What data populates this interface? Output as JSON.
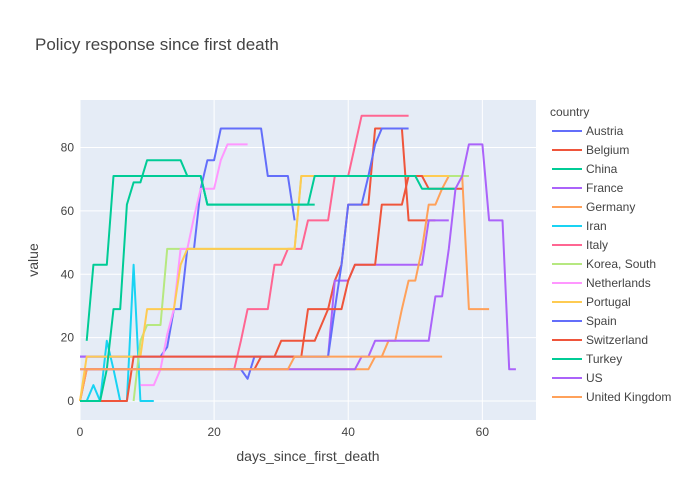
{
  "chart_data": {
    "type": "line",
    "title": "Policy response since first death",
    "xlabel": "days_since_first_death",
    "ylabel": "value",
    "xlim": [
      0,
      68
    ],
    "ylim": [
      -6,
      95
    ],
    "x_ticks": [
      0,
      20,
      40,
      60
    ],
    "y_ticks": [
      0,
      20,
      40,
      60,
      80
    ],
    "legend_title": "country",
    "legend_position": "right",
    "series": [
      {
        "name": "Austria",
        "color": "#636efa",
        "points": [
          [
            0,
            14
          ],
          [
            12,
            14
          ],
          [
            13,
            17
          ],
          [
            14,
            29
          ],
          [
            15,
            29
          ],
          [
            16,
            48
          ],
          [
            17,
            48
          ],
          [
            18,
            67
          ],
          [
            19,
            76
          ],
          [
            20,
            76
          ],
          [
            21,
            86
          ],
          [
            27,
            86
          ],
          [
            28,
            71
          ],
          [
            31,
            71
          ],
          [
            32,
            57
          ]
        ]
      },
      {
        "name": "Belgium",
        "color": "#EF553B",
        "points": [
          [
            0,
            0
          ],
          [
            1,
            10
          ],
          [
            26,
            10
          ],
          [
            27,
            14
          ],
          [
            29,
            14
          ],
          [
            30,
            19
          ],
          [
            35,
            19
          ],
          [
            36,
            24
          ],
          [
            37,
            29
          ],
          [
            38,
            38
          ],
          [
            39,
            43
          ],
          [
            40,
            62
          ],
          [
            41,
            62
          ],
          [
            42,
            62
          ],
          [
            43,
            62
          ],
          [
            44,
            86
          ],
          [
            48,
            86
          ],
          [
            49,
            57
          ],
          [
            53,
            57
          ]
        ]
      },
      {
        "name": "China",
        "color": "#00cc96",
        "points": [
          [
            1,
            19
          ],
          [
            2,
            43
          ],
          [
            4,
            43
          ],
          [
            5,
            71
          ],
          [
            18,
            71
          ],
          [
            19,
            62
          ],
          [
            35,
            62
          ]
        ]
      },
      {
        "name": "France",
        "color": "#ab63fa",
        "points": [
          [
            0,
            14
          ],
          [
            1,
            14
          ],
          [
            28,
            14
          ],
          [
            29,
            14
          ],
          [
            37,
            14
          ],
          [
            38,
            38
          ],
          [
            40,
            38
          ],
          [
            41,
            43
          ],
          [
            51,
            43
          ],
          [
            52,
            57
          ],
          [
            55,
            57
          ]
        ]
      },
      {
        "name": "Germany",
        "color": "#FFA15A",
        "points": [
          [
            0,
            0
          ],
          [
            1,
            10
          ],
          [
            43,
            10
          ],
          [
            44,
            14
          ],
          [
            45,
            14
          ],
          [
            46,
            19
          ],
          [
            47,
            19
          ],
          [
            48,
            29
          ],
          [
            49,
            38
          ],
          [
            50,
            38
          ],
          [
            51,
            48
          ],
          [
            52,
            62
          ],
          [
            53,
            62
          ],
          [
            54,
            67
          ],
          [
            55,
            71
          ],
          [
            56,
            71
          ],
          [
            57,
            71
          ],
          [
            58,
            29
          ],
          [
            61,
            29
          ]
        ]
      },
      {
        "name": "Iran",
        "color": "#19d3f3",
        "points": [
          [
            0,
            0
          ],
          [
            1,
            0
          ],
          [
            2,
            5
          ],
          [
            3,
            0
          ],
          [
            4,
            19
          ],
          [
            5,
            10
          ],
          [
            6,
            0
          ],
          [
            7,
            0
          ],
          [
            8,
            43
          ],
          [
            9,
            0
          ],
          [
            10,
            0
          ],
          [
            11,
            0
          ]
        ]
      },
      {
        "name": "Italy",
        "color": "#FF6692",
        "points": [
          [
            23,
            10
          ],
          [
            24,
            19
          ],
          [
            25,
            29
          ],
          [
            28,
            29
          ],
          [
            29,
            43
          ],
          [
            30,
            43
          ],
          [
            31,
            48
          ],
          [
            33,
            48
          ],
          [
            34,
            57
          ],
          [
            37,
            57
          ],
          [
            38,
            71
          ],
          [
            40,
            71
          ],
          [
            42,
            90
          ],
          [
            49,
            90
          ]
        ]
      },
      {
        "name": "Korea, South",
        "color": "#B6E880",
        "points": [
          [
            8,
            0
          ],
          [
            9,
            19
          ],
          [
            10,
            24
          ],
          [
            12,
            24
          ],
          [
            13,
            48
          ],
          [
            32,
            48
          ],
          [
            33,
            71
          ],
          [
            58,
            71
          ]
        ]
      },
      {
        "name": "Netherlands",
        "color": "#FF97FF",
        "points": [
          [
            9,
            5
          ],
          [
            11,
            5
          ],
          [
            12,
            10
          ],
          [
            13,
            21
          ],
          [
            14,
            29
          ],
          [
            15,
            48
          ],
          [
            16,
            48
          ],
          [
            17,
            58
          ],
          [
            18,
            67
          ],
          [
            19,
            67
          ],
          [
            20,
            67
          ],
          [
            21,
            76
          ],
          [
            22,
            81
          ],
          [
            25,
            81
          ]
        ]
      },
      {
        "name": "Portugal",
        "color": "#FECB52",
        "points": [
          [
            0,
            0
          ],
          [
            1,
            14
          ],
          [
            9,
            14
          ],
          [
            10,
            29
          ],
          [
            14,
            29
          ],
          [
            15,
            43
          ],
          [
            16,
            48
          ],
          [
            31,
            48
          ],
          [
            32,
            48
          ],
          [
            33,
            71
          ],
          [
            55,
            71
          ]
        ]
      },
      {
        "name": "Spain",
        "color": "#636efa",
        "points": [
          [
            22,
            10
          ],
          [
            24,
            10
          ],
          [
            25,
            7
          ],
          [
            26,
            14
          ],
          [
            27,
            14
          ],
          [
            28,
            14
          ],
          [
            37,
            14
          ],
          [
            38,
            29
          ],
          [
            39,
            43
          ],
          [
            40,
            62
          ],
          [
            42,
            62
          ],
          [
            43,
            71
          ],
          [
            44,
            81
          ],
          [
            45,
            86
          ],
          [
            49,
            86
          ]
        ]
      },
      {
        "name": "Switzerland",
        "color": "#EF553B",
        "points": [
          [
            0,
            0
          ],
          [
            1,
            0
          ],
          [
            2,
            0
          ],
          [
            3,
            0
          ],
          [
            4,
            0
          ],
          [
            5,
            0
          ],
          [
            6,
            0
          ],
          [
            7,
            0
          ],
          [
            8,
            14
          ],
          [
            29,
            14
          ],
          [
            30,
            14
          ],
          [
            33,
            14
          ],
          [
            34,
            29
          ],
          [
            39,
            29
          ],
          [
            40,
            38
          ],
          [
            41,
            43
          ],
          [
            44,
            43
          ],
          [
            45,
            62
          ],
          [
            47,
            62
          ],
          [
            48,
            62
          ],
          [
            49,
            71
          ],
          [
            51,
            71
          ],
          [
            52,
            67
          ],
          [
            57,
            67
          ]
        ]
      },
      {
        "name": "Turkey",
        "color": "#00cc96",
        "points": [
          [
            0,
            0
          ],
          [
            1,
            0
          ],
          [
            2,
            0
          ],
          [
            3,
            0
          ],
          [
            4,
            10
          ],
          [
            5,
            29
          ],
          [
            6,
            29
          ],
          [
            7,
            62
          ],
          [
            8,
            69
          ],
          [
            9,
            69
          ],
          [
            10,
            76
          ],
          [
            15,
            76
          ],
          [
            16,
            71
          ],
          [
            17,
            71
          ],
          [
            18,
            71
          ],
          [
            19,
            62
          ],
          [
            34,
            62
          ],
          [
            35,
            71
          ],
          [
            50,
            71
          ],
          [
            51,
            67
          ],
          [
            56,
            67
          ]
        ]
      },
      {
        "name": "US",
        "color": "#ab63fa",
        "points": [
          [
            0,
            10
          ],
          [
            41,
            10
          ],
          [
            42,
            14
          ],
          [
            43,
            14
          ],
          [
            44,
            19
          ],
          [
            52,
            19
          ],
          [
            53,
            33
          ],
          [
            54,
            33
          ],
          [
            55,
            48
          ],
          [
            56,
            67
          ],
          [
            57,
            71
          ],
          [
            58,
            81
          ],
          [
            59,
            81
          ],
          [
            60,
            81
          ],
          [
            61,
            57
          ],
          [
            62,
            57
          ],
          [
            63,
            57
          ],
          [
            64,
            10
          ],
          [
            65,
            10
          ]
        ]
      },
      {
        "name": "United Kingdom",
        "color": "#FFA15A",
        "points": [
          [
            0,
            10
          ],
          [
            1,
            10
          ],
          [
            30,
            10
          ],
          [
            31,
            10
          ],
          [
            32,
            14
          ],
          [
            33,
            14
          ],
          [
            34,
            14
          ],
          [
            35,
            14
          ],
          [
            36,
            14
          ],
          [
            37,
            14
          ],
          [
            38,
            14
          ],
          [
            39,
            14
          ],
          [
            40,
            14
          ],
          [
            41,
            14
          ],
          [
            42,
            14
          ],
          [
            43,
            14
          ],
          [
            44,
            14
          ],
          [
            45,
            14
          ],
          [
            46,
            14
          ],
          [
            47,
            14
          ],
          [
            48,
            14
          ],
          [
            49,
            14
          ],
          [
            50,
            14
          ],
          [
            51,
            14
          ],
          [
            52,
            14
          ],
          [
            53,
            14
          ],
          [
            54,
            14
          ]
        ]
      }
    ]
  }
}
